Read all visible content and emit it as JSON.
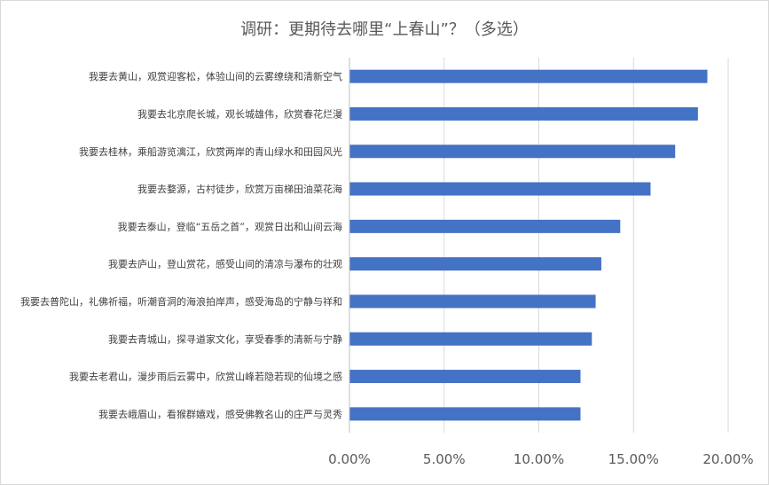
{
  "chart_data": {
    "type": "bar",
    "orientation": "horizontal",
    "title": "调研：更期待去哪里“上春山”？（多选）",
    "xlim": [
      0,
      0.2
    ],
    "x_ticks": [
      "0.00%",
      "5.00%",
      "10.00%",
      "15.00%",
      "20.00%"
    ],
    "grid": "vertical",
    "bar_color": "#4472c4",
    "categories": [
      "我要去黄山，观赏迎客松，体验山间的云雾缭绕和清新空气",
      "我要去北京爬长城，观长城雄伟，欣赏春花烂漫",
      "我要去桂林，乘船游览漓江，欣赏两岸的青山绿水和田园风光",
      "我要去婺源，古村徒步，欣赏万亩梯田油菜花海",
      "我要去泰山，登临“五岳之首”，观赏日出和山间云海",
      "我要去庐山，登山赏花，感受山间的清凉与瀑布的壮观",
      "我要去普陀山，礼佛祈福，听潮音洞的海浪拍岸声，感受海岛的宁静与祥和",
      "我要去青城山，探寻道家文化，享受春季的清新与宁静",
      "我要去老君山，漫步雨后云雾中，欣赏山峰若隐若现的仙境之感",
      "我要去峨眉山，看猴群嬉戏，感受佛教名山的庄严与灵秀"
    ],
    "values": [
      0.189,
      0.184,
      0.172,
      0.159,
      0.143,
      0.133,
      0.13,
      0.128,
      0.122,
      0.122
    ]
  }
}
